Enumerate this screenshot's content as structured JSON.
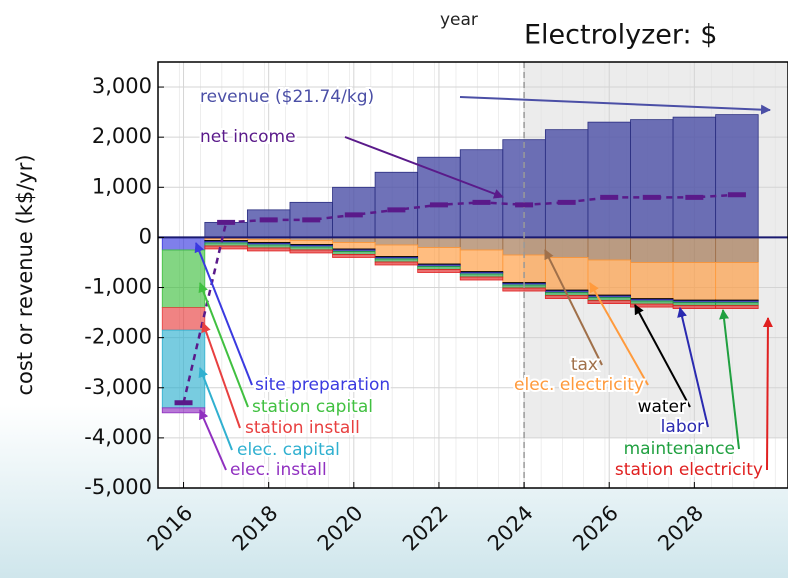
{
  "chart_data": {
    "type": "bar",
    "title": "Electrolyzer: $",
    "x_label": "year",
    "y_label": "cost or revenue (k$/yr)",
    "x": [
      2016,
      2017,
      2018,
      2019,
      2020,
      2021,
      2022,
      2023,
      2024,
      2025,
      2026,
      2027,
      2028,
      2029
    ],
    "xlim": [
      2015.4,
      2030.2
    ],
    "xticks": [
      2016,
      2018,
      2020,
      2022,
      2024,
      2026,
      2028
    ],
    "ylim": [
      -5000,
      3500
    ],
    "yticks": [
      {
        "value": 3000,
        "label": "3,000"
      },
      {
        "value": 2000,
        "label": "2,000"
      },
      {
        "value": 1000,
        "label": "1,000"
      },
      0,
      {
        "value": -1000,
        "label": "-1,000"
      },
      {
        "value": -2000,
        "label": "-2,000"
      },
      {
        "value": -3000,
        "label": "-3,000"
      },
      {
        "value": -4000,
        "label": "-4,000"
      },
      {
        "value": -5000,
        "label": "-5,000"
      }
    ],
    "grid": true,
    "shade_from": 2024,
    "series": [
      {
        "name": "revenue ($21.74/kg)",
        "color": "#4b4fa6",
        "values": [
          0,
          300,
          550,
          700,
          1000,
          1300,
          1600,
          1750,
          1950,
          2150,
          2300,
          2350,
          2400,
          2450
        ]
      },
      {
        "name": "site preparation",
        "color": "#3a3ae0",
        "values": [
          -250,
          0,
          0,
          0,
          0,
          0,
          0,
          0,
          0,
          0,
          0,
          0,
          0,
          0
        ]
      },
      {
        "name": "station capital",
        "color": "#40c040",
        "values": [
          -1150,
          0,
          0,
          0,
          0,
          0,
          0,
          0,
          0,
          0,
          0,
          0,
          0,
          0
        ]
      },
      {
        "name": "station install",
        "color": "#e84040",
        "values": [
          -450,
          0,
          0,
          0,
          0,
          0,
          0,
          0,
          0,
          0,
          0,
          0,
          0,
          0
        ]
      },
      {
        "name": "elec. capital",
        "color": "#30b0d0",
        "values": [
          -1550,
          0,
          0,
          0,
          0,
          0,
          0,
          0,
          0,
          0,
          0,
          0,
          0,
          0
        ]
      },
      {
        "name": "elec. install",
        "color": "#9030c0",
        "values": [
          -100,
          0,
          0,
          0,
          0,
          0,
          0,
          0,
          0,
          0,
          0,
          0,
          0,
          0
        ]
      },
      {
        "name": "tax",
        "color": "#a0704a",
        "values": [
          0,
          -20,
          -40,
          -60,
          -100,
          -150,
          -200,
          -250,
          -350,
          -400,
          -450,
          -500,
          -500,
          -500
        ]
      },
      {
        "name": "elec. electricity",
        "color": "#ff9a3c",
        "values": [
          0,
          -40,
          -60,
          -80,
          -130,
          -230,
          -330,
          -430,
          -550,
          -650,
          -700,
          -720,
          -750,
          -750
        ]
      },
      {
        "name": "water",
        "color": "#000000",
        "values": [
          0,
          -20,
          -20,
          -20,
          -20,
          -20,
          -20,
          -20,
          -20,
          -20,
          -20,
          -20,
          -20,
          -20
        ]
      },
      {
        "name": "labor",
        "color": "#2a2ab0",
        "values": [
          0,
          -30,
          -30,
          -30,
          -30,
          -30,
          -30,
          -30,
          -30,
          -30,
          -30,
          -30,
          -30,
          -30
        ]
      },
      {
        "name": "maintenance",
        "color": "#20a040",
        "values": [
          0,
          -60,
          -60,
          -60,
          -60,
          -60,
          -60,
          -60,
          -60,
          -60,
          -60,
          -60,
          -60,
          -60
        ]
      },
      {
        "name": "station electricity",
        "color": "#e02020",
        "values": [
          0,
          -60,
          -60,
          -60,
          -60,
          -60,
          -60,
          -60,
          -60,
          -60,
          -60,
          -60,
          -60,
          -60
        ]
      }
    ],
    "net_income": {
      "name": "net income",
      "color": "#5a1a8a",
      "values": [
        -3300,
        300,
        350,
        350,
        450,
        550,
        650,
        700,
        650,
        700,
        800,
        800,
        800,
        850
      ]
    }
  }
}
